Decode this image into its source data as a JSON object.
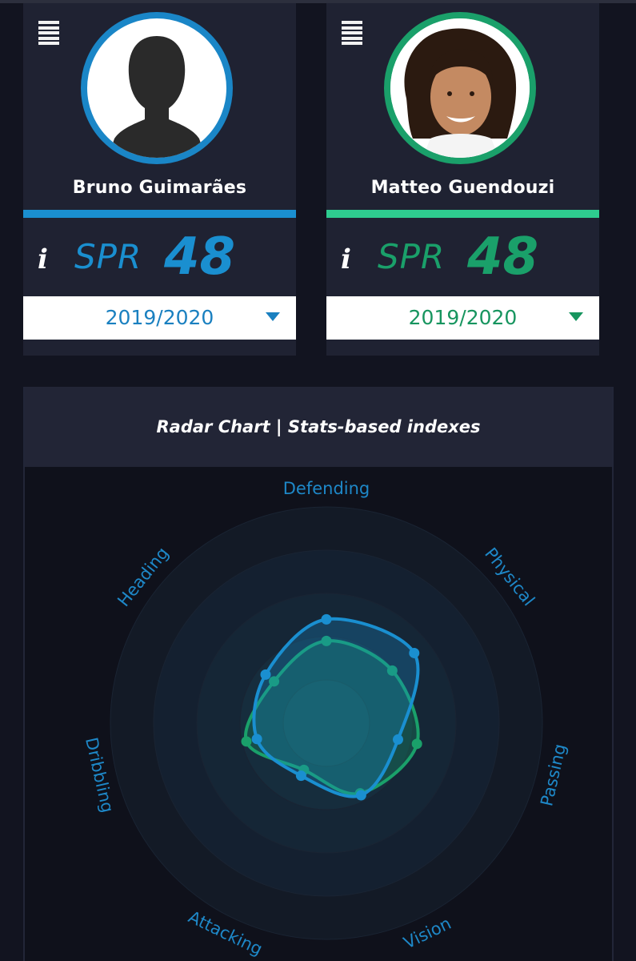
{
  "players": [
    {
      "name": "Bruno Guimarães",
      "spr_label": "SPR",
      "spr_value": "48",
      "season": "2019/2020",
      "color": "#1a8fd0"
    },
    {
      "name": "Matteo Guendouzi",
      "spr_label": "SPR",
      "spr_value": "48",
      "season": "2019/2020",
      "color": "#1aa06a"
    }
  ],
  "icons": {
    "menu": "menu-icon",
    "info": "info-icon",
    "dropdown": "caret-down-icon"
  },
  "info_symbol": "i",
  "chart": {
    "title": "Radar Chart | Stats-based indexes"
  },
  "chart_data": {
    "type": "radar",
    "axes": [
      "Defending",
      "Physical",
      "Passing",
      "Vision",
      "Attacking",
      "Dribbling",
      "Heading"
    ],
    "rmax": 100,
    "grid": true,
    "series": [
      {
        "name": "Bruno Guimarães",
        "color": "#1a8fd0",
        "values": [
          48,
          52,
          34,
          37,
          27,
          33,
          36
        ]
      },
      {
        "name": "Matteo Guendouzi",
        "color": "#1aa06a",
        "values": [
          38,
          39,
          43,
          36,
          24,
          38,
          31
        ]
      }
    ]
  }
}
